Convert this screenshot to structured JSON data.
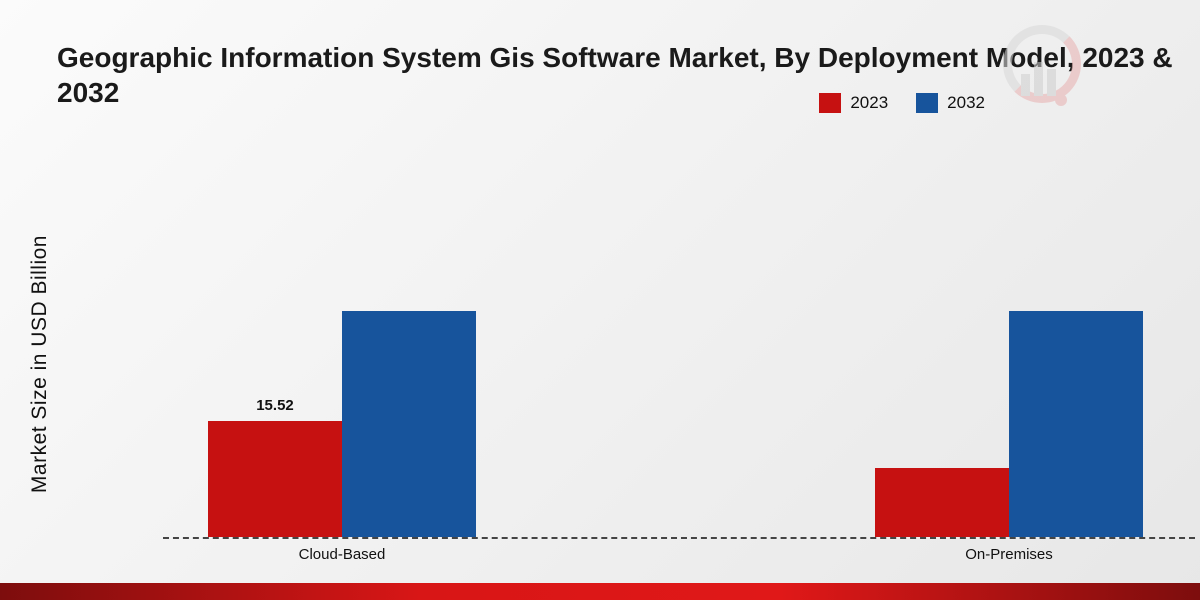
{
  "title": "Geographic Information System Gis Software Market, By Deployment Model, 2023 & 2032",
  "ylabel": "Market Size in USD Billion",
  "legend": [
    {
      "label": "2023",
      "color": "#c61111"
    },
    {
      "label": "2032",
      "color": "#17549c"
    }
  ],
  "colors": {
    "series_2023": "#c61111",
    "series_2032": "#17549c",
    "bottom_stripe": "#c01313",
    "background": "#f0f0f0"
  },
  "chart_data": {
    "type": "bar",
    "title": "Geographic Information System Gis Software Market, By Deployment Model, 2023 & 2032",
    "xlabel": "",
    "ylabel": "Market Size in USD Billion",
    "categories": [
      "Cloud-Based",
      "On-Premises"
    ],
    "series": [
      {
        "name": "2023",
        "color": "#c61111",
        "values": [
          15.52,
          9.2
        ],
        "labels": [
          "15.52",
          ""
        ]
      },
      {
        "name": "2032",
        "color": "#17549c",
        "values": [
          30.2,
          30.2
        ],
        "labels": [
          "",
          ""
        ]
      }
    ],
    "ylim": [
      0,
      32
    ],
    "grid": false,
    "legend_position": "top-right",
    "baseline_style": "dashed",
    "visible_data_labels": [
      "Cloud-Based 2023: 15.52"
    ]
  }
}
